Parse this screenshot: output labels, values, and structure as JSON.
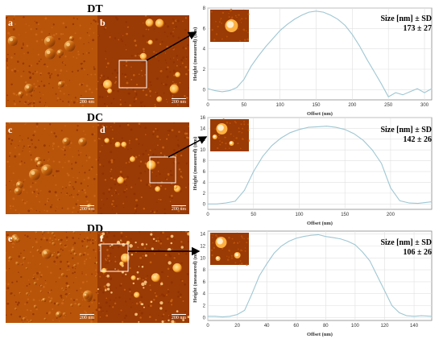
{
  "figure": {
    "rows": [
      {
        "title": "DT",
        "amp_letter": "a",
        "height_letter": "b",
        "scale_text": "200 nm",
        "chart_data": {
          "type": "line",
          "xlabel": "Offset (nm)",
          "ylabel": "Height (measured) (nm)",
          "xlim": [
            0,
            310
          ],
          "ylim": [
            -1,
            8
          ],
          "xticks": [
            0,
            50,
            100,
            150,
            200,
            250,
            300
          ],
          "yticks": [
            0,
            2,
            4,
            6,
            8
          ],
          "grid": true,
          "stat_label": "Size [nm] ± SD",
          "stat_value": "173 ± 27",
          "x": [
            0,
            10,
            20,
            30,
            40,
            50,
            60,
            70,
            80,
            90,
            100,
            110,
            120,
            130,
            140,
            150,
            160,
            170,
            180,
            190,
            200,
            210,
            220,
            230,
            240,
            250,
            260,
            270,
            280,
            290,
            300,
            310
          ],
          "y": [
            0.1,
            -0.1,
            -0.2,
            -0.1,
            0.2,
            1.0,
            2.3,
            3.3,
            4.2,
            5.0,
            5.8,
            6.4,
            6.9,
            7.3,
            7.6,
            7.7,
            7.6,
            7.3,
            6.9,
            6.3,
            5.4,
            4.3,
            3.0,
            1.8,
            0.6,
            -0.7,
            -0.3,
            -0.5,
            -0.2,
            0.1,
            -0.3,
            0.1
          ]
        }
      },
      {
        "title": "DC",
        "amp_letter": "c",
        "height_letter": "d",
        "scale_text": "200 nm",
        "chart_data": {
          "type": "line",
          "xlabel": "Offset (nm)",
          "ylabel": "Height (measured) (nm)",
          "xlim": [
            0,
            245
          ],
          "ylim": [
            -1,
            16
          ],
          "xticks": [
            0,
            50,
            100,
            150,
            200
          ],
          "yticks": [
            0,
            2,
            4,
            6,
            8,
            10,
            12,
            14,
            16
          ],
          "grid": true,
          "stat_label": "Size [nm] ± SD",
          "stat_value": "142 ± 26",
          "x": [
            0,
            10,
            20,
            30,
            40,
            50,
            60,
            70,
            80,
            90,
            100,
            110,
            120,
            130,
            140,
            150,
            160,
            170,
            180,
            190,
            200,
            210,
            220,
            230,
            245
          ],
          "y": [
            0,
            0,
            0.2,
            0.5,
            2.5,
            6.0,
            8.8,
            10.8,
            12.2,
            13.2,
            13.8,
            14.2,
            14.3,
            14.4,
            14.2,
            13.8,
            13.0,
            11.8,
            10.0,
            7.5,
            3.0,
            0.6,
            0.2,
            0.1,
            0.4
          ]
        }
      },
      {
        "title": "DD",
        "amp_letter": "e",
        "height_letter": "f",
        "scale_text": "200 nm",
        "chart_data": {
          "type": "line",
          "xlabel": "Offset (nm)",
          "ylabel": "Height (measured) (nm)",
          "xlim": [
            0,
            152
          ],
          "ylim": [
            -0.5,
            14.5
          ],
          "xticks": [
            0,
            20,
            40,
            60,
            80,
            100,
            120,
            140
          ],
          "yticks": [
            0,
            2,
            4,
            6,
            8,
            10,
            12,
            14
          ],
          "grid": true,
          "stat_label": "Size [nm] ± SD",
          "stat_value": "106 ± 26",
          "x": [
            0,
            5,
            10,
            15,
            20,
            25,
            30,
            35,
            40,
            45,
            50,
            55,
            60,
            65,
            70,
            75,
            80,
            85,
            90,
            95,
            100,
            105,
            110,
            115,
            120,
            125,
            130,
            135,
            140,
            145,
            152
          ],
          "y": [
            0.2,
            0.2,
            0.1,
            0.2,
            0.5,
            1.2,
            4.0,
            7.0,
            9.0,
            10.8,
            12.0,
            12.8,
            13.3,
            13.6,
            13.8,
            13.9,
            13.6,
            13.4,
            13.2,
            12.8,
            12.2,
            11.0,
            9.5,
            7.0,
            4.5,
            2.0,
            0.8,
            0.3,
            0.2,
            0.3,
            0.2
          ]
        }
      }
    ]
  },
  "colors": {
    "line": "#9fc7d3",
    "grid": "#e0e0e0",
    "axis": "#888888",
    "afm_dark": "#6b2400",
    "afm_mid": "#c4620c",
    "afm_light": "#ffe7a0"
  }
}
